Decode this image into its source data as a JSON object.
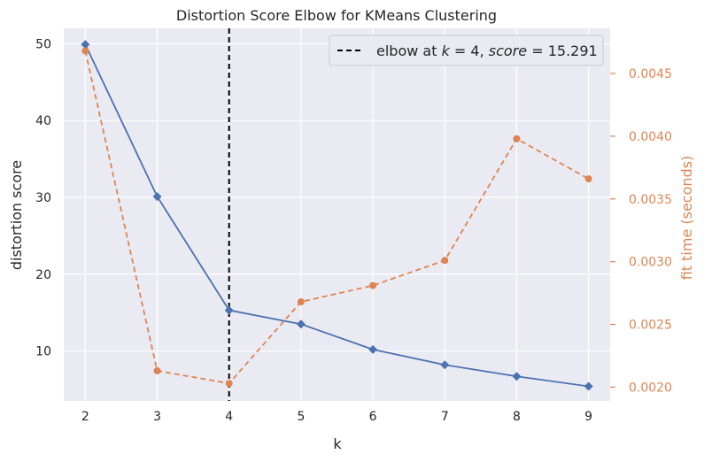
{
  "chart_data": {
    "type": "line",
    "title": "Distortion Score Elbow for KMeans Clustering",
    "xlabel": "k",
    "ylabel": "distortion score",
    "y2label": "fit time (seconds)",
    "x": [
      2,
      3,
      4,
      5,
      6,
      7,
      8,
      9
    ],
    "xlim": [
      1.7,
      9.3
    ],
    "ylim": [
      3.5,
      52.0
    ],
    "y2lim": [
      0.00189,
      0.00486
    ],
    "yticks": [
      10,
      20,
      30,
      40,
      50
    ],
    "y2ticks": [
      0.002,
      0.0025,
      0.003,
      0.0035,
      0.004,
      0.0045
    ],
    "y2tick_labels": [
      "0.0020",
      "0.0025",
      "0.0030",
      "0.0035",
      "0.0040",
      "0.0045"
    ],
    "grid": true,
    "series": [
      {
        "name": "distortion score",
        "axis": "left",
        "values": [
          49.9,
          30.1,
          15.3,
          13.5,
          10.2,
          8.2,
          6.7,
          5.4
        ],
        "color": "#4c72b0",
        "marker": "diamond",
        "line_style": "solid"
      },
      {
        "name": "fit time (seconds)",
        "axis": "right",
        "values": [
          0.00468,
          0.00213,
          0.00203,
          0.00268,
          0.00281,
          0.00301,
          0.00398,
          0.00366
        ],
        "color": "#dd8452",
        "marker": "circle",
        "line_style": "dashed"
      }
    ],
    "elbow": {
      "k": 4,
      "score": 15.291,
      "legend_text": "elbow at k = 4, score = 15.291",
      "legend_parts": {
        "prefix": "elbow at ",
        "k_var": "k",
        "eq1": " = 4, ",
        "score_var": "score",
        "eq2": " = 15.291"
      },
      "legend_position": "top-right"
    },
    "colors": {
      "background": "#eaeaf2",
      "grid": "#ffffff",
      "primary": "#4c72b0",
      "secondary": "#dd8452"
    }
  }
}
